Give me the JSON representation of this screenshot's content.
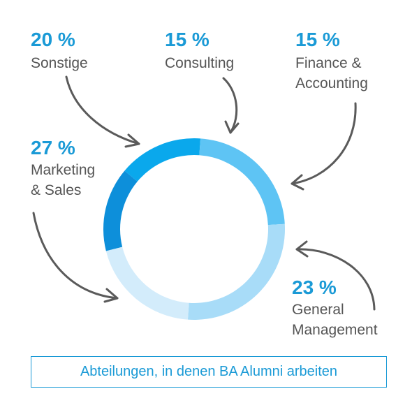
{
  "chart_data": {
    "type": "pie",
    "variant": "donut",
    "slices": [
      {
        "label_lines": [
          "Consulting"
        ],
        "value": 15,
        "display": "15 %",
        "color": "#0d8fda"
      },
      {
        "label_lines": [
          "Finance &",
          "Accounting"
        ],
        "value": 15,
        "display": "15 %",
        "color": "#0aa8ec"
      },
      {
        "label_lines": [
          "General",
          "Management"
        ],
        "value": 23,
        "display": "23 %",
        "color": "#5ec4f4"
      },
      {
        "label_lines": [
          "Marketing",
          "& Sales"
        ],
        "value": 27,
        "display": "27 %",
        "color": "#a8dcf8"
      },
      {
        "label_lines": [
          "Sonstige"
        ],
        "value": 20,
        "display": "20 %",
        "color": "#d3ecfb"
      }
    ],
    "legend": "annotations with arrows around the ring"
  },
  "caption": "Abteilungen, in denen BA Alumni arbeiten",
  "colors": {
    "accent": "#1a9ad6",
    "label": "#555555",
    "arrow": "#5a5a5a",
    "caption_border": "#1a9ad6"
  }
}
